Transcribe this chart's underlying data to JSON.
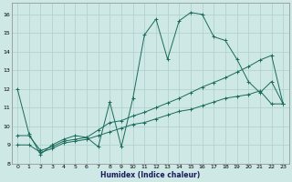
{
  "xlabel": "Humidex (Indice chaleur)",
  "background_color": "#cde8e5",
  "grid_color": "#aecfcc",
  "line_color": "#1a6b5a",
  "xlim": [
    -0.5,
    23.5
  ],
  "ylim": [
    8.0,
    16.6
  ],
  "yticks": [
    8,
    9,
    10,
    11,
    12,
    13,
    14,
    15,
    16
  ],
  "xticks": [
    0,
    1,
    2,
    3,
    4,
    5,
    6,
    7,
    8,
    9,
    10,
    11,
    12,
    13,
    14,
    15,
    16,
    17,
    18,
    19,
    20,
    21,
    22,
    23
  ],
  "line1_x": [
    0,
    1,
    2,
    3,
    4,
    5,
    6,
    7,
    8,
    9,
    10,
    11,
    12,
    13,
    14,
    15,
    16,
    17,
    18,
    19,
    20,
    21,
    22,
    23
  ],
  "line1_y": [
    12.0,
    9.6,
    8.5,
    9.0,
    9.3,
    9.5,
    9.4,
    8.9,
    11.3,
    8.9,
    11.5,
    14.9,
    15.75,
    13.6,
    15.65,
    16.1,
    16.0,
    14.8,
    14.6,
    13.6,
    12.4,
    11.8,
    12.4,
    11.2
  ],
  "line2_x": [
    0,
    1,
    2,
    3,
    4,
    5,
    6,
    7,
    8,
    9,
    10,
    11,
    12,
    13,
    14,
    15,
    16,
    17,
    18,
    19,
    20,
    21,
    22,
    23
  ],
  "line2_y": [
    9.5,
    9.5,
    8.7,
    8.9,
    9.2,
    9.3,
    9.4,
    9.8,
    10.2,
    10.3,
    10.55,
    10.75,
    11.0,
    11.25,
    11.5,
    11.8,
    12.1,
    12.35,
    12.6,
    12.9,
    13.2,
    13.55,
    13.8,
    11.2
  ],
  "line3_x": [
    0,
    1,
    2,
    3,
    4,
    5,
    6,
    7,
    8,
    9,
    10,
    11,
    12,
    13,
    14,
    15,
    16,
    17,
    18,
    19,
    20,
    21,
    22,
    23
  ],
  "line3_y": [
    9.0,
    9.0,
    8.6,
    8.8,
    9.1,
    9.2,
    9.3,
    9.5,
    9.7,
    9.9,
    10.1,
    10.2,
    10.4,
    10.6,
    10.8,
    10.9,
    11.1,
    11.3,
    11.5,
    11.6,
    11.7,
    11.9,
    11.2,
    11.2
  ],
  "xlabel_fontsize": 5.5,
  "tick_fontsize": 4.5
}
